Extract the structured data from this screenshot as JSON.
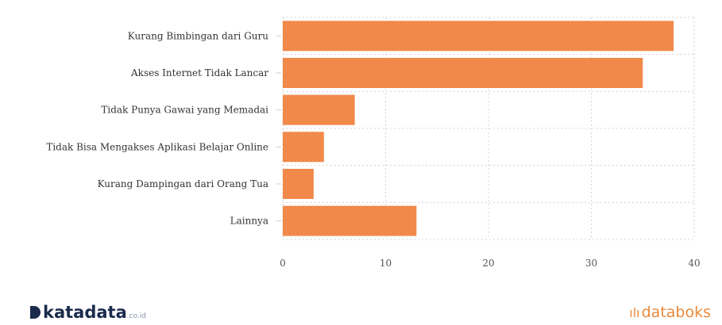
{
  "chart_data": {
    "type": "bar",
    "orientation": "horizontal",
    "categories": [
      "Kurang Bimbingan dari Guru",
      "Akses Internet Tidak Lancar",
      "Tidak Punya Gawai yang Memadai",
      "Tidak Bisa Mengakses Aplikasi Belajar Online",
      "Kurang Dampingan dari Orang Tua",
      "Lainnya"
    ],
    "values": [
      38,
      35,
      7,
      4,
      3,
      13
    ],
    "xlim": [
      0,
      40
    ],
    "xticks": [
      "0",
      "10",
      "20",
      "30",
      "40"
    ],
    "grid": true,
    "bar_color": "#f0894a"
  },
  "footer": {
    "left_brand": "katadata",
    "left_suffix": ".co.id",
    "right_brand": "databoks",
    "left_color": "#1a2b4c",
    "right_color": "#e98a3c"
  }
}
